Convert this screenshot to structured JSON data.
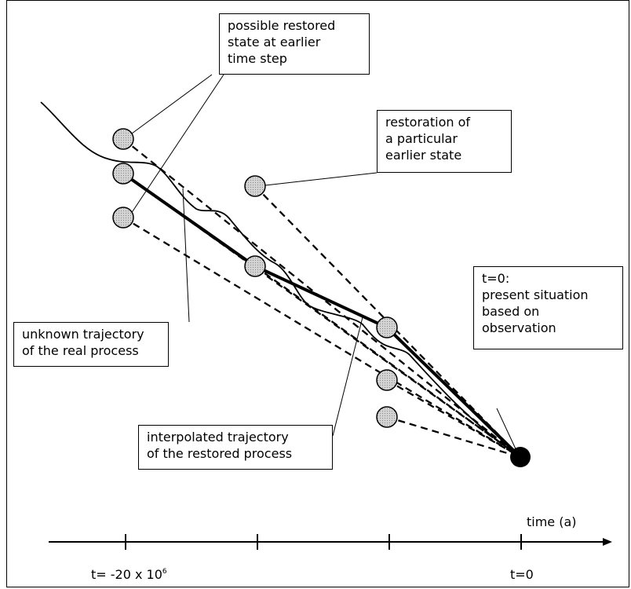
{
  "labels": {
    "earlier_step": "possible restored\nstate at earlier\ntime step",
    "particular_state": "restoration of\na particular\nearlier state",
    "present": "t=0:\npresent situation\nbased on\nobservation",
    "unknown_trajectory": "unknown trajectory\nof the real process",
    "interpolated": "interpolated  trajectory\nof the restored process"
  },
  "axis": {
    "title": "time (a)",
    "tick_start_prefix": "t=  -20 x 10",
    "tick_start_exp": "6",
    "tick_end": "t=0"
  }
}
